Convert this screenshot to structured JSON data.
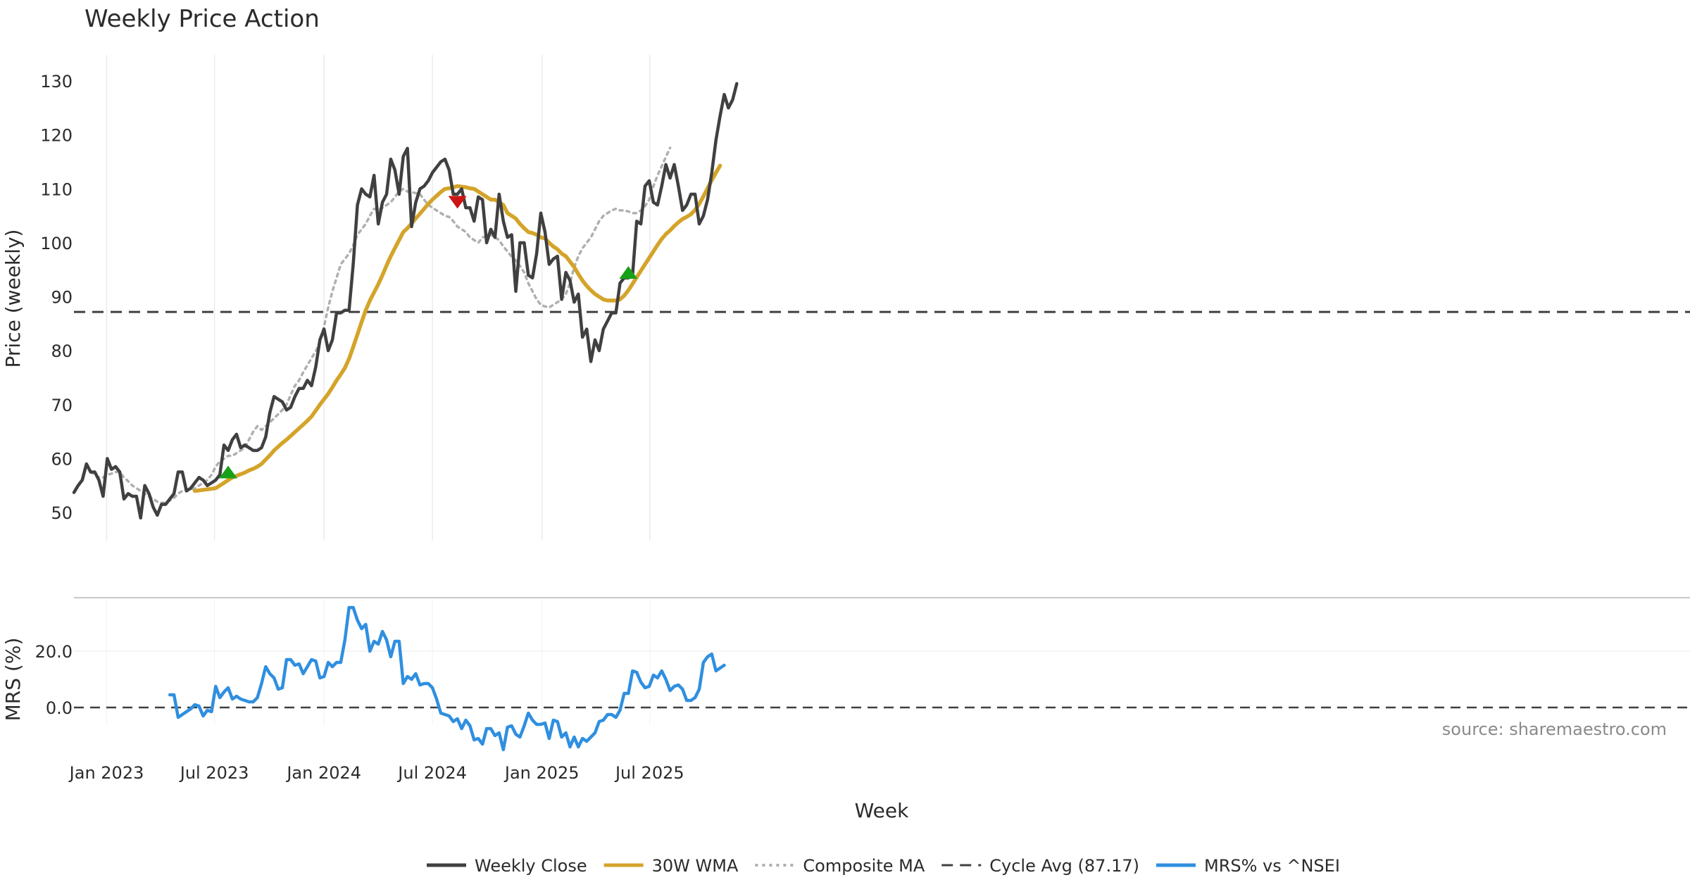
{
  "chart_data": {
    "type": "line",
    "title": "Weekly Price Action",
    "source_note": "source: sharemaestro.com",
    "xlabel": "Week",
    "x_start_date": "2022-11-07",
    "x_interval": "weekly",
    "x_ticks": [
      {
        "date": "2023-01-01",
        "label": "Jan 2023"
      },
      {
        "date": "2023-07-01",
        "label": "Jul 2023"
      },
      {
        "date": "2024-01-01",
        "label": "Jan 2024"
      },
      {
        "date": "2024-07-01",
        "label": "Jul 2024"
      },
      {
        "date": "2025-01-01",
        "label": "Jan 2025"
      },
      {
        "date": "2025-07-01",
        "label": "Jul 2025"
      }
    ],
    "grid": true,
    "legend_position": "bottom-center",
    "price_panel": {
      "ylabel": "Price (weekly)",
      "ylim": [
        44,
        135
      ],
      "yticks": [
        50,
        60,
        70,
        80,
        90,
        100,
        110,
        120,
        130
      ],
      "cycle_avg": 87.17,
      "series": [
        {
          "name": "Weekly Close",
          "color": "#404040",
          "style": "solid",
          "values": [
            53.7,
            55,
            56,
            59,
            57.5,
            57.5,
            56,
            53,
            60,
            58,
            58.5,
            57.5,
            52.5,
            53.5,
            53,
            53,
            49,
            55,
            53.5,
            51,
            49.5,
            51.5,
            51.5,
            52.5,
            53.5,
            57.5,
            57.5,
            54,
            54.5,
            55.5,
            56.5,
            56,
            55,
            55.5,
            56,
            57,
            62.5,
            61.5,
            63.5,
            64.5,
            62,
            62.5,
            62,
            61.5,
            61.5,
            62,
            64,
            68.5,
            71.5,
            71,
            70.5,
            69,
            69.5,
            71.5,
            73,
            73,
            74.5,
            73.5,
            77,
            82,
            84,
            80,
            82,
            87,
            87,
            87.5,
            87.5,
            96,
            107,
            110,
            109,
            108.5,
            112.5,
            103.5,
            107.5,
            109,
            115.5,
            113.5,
            109,
            116,
            117.5,
            103,
            107.5,
            110,
            110.5,
            111.5,
            113,
            114,
            115,
            115.5,
            113.5,
            109,
            109,
            110,
            106.5,
            106.5,
            104,
            108.5,
            108,
            100,
            102.5,
            101,
            109,
            104,
            101,
            101.5,
            91,
            100,
            100,
            94,
            93.5,
            98,
            105.5,
            102,
            96,
            97,
            97.5,
            89.5,
            94.5,
            93,
            89,
            90.5,
            82.5,
            84,
            78,
            82,
            80,
            84,
            85.5,
            87,
            87,
            92.5,
            93.5,
            93.5,
            94,
            104,
            103.5,
            110.5,
            111.5,
            107.5,
            107,
            110.5,
            114.5,
            112,
            114.5,
            110.5,
            106,
            107,
            109,
            109,
            103.5,
            105,
            108,
            113,
            119,
            123.5,
            127.5,
            125,
            126.5,
            129.5
          ]
        },
        {
          "name": "30W WMA",
          "color": "#D4A42A",
          "style": "solid",
          "start_index": 29,
          "values": [
            54,
            54.1,
            54.2,
            54.3,
            54.4,
            54.5,
            55,
            55.5,
            56,
            56.5,
            56.8,
            57.1,
            57.4,
            57.8,
            58.1,
            58.5,
            59,
            59.8,
            60.6,
            61.5,
            62.2,
            62.9,
            63.5,
            64.2,
            64.9,
            65.6,
            66.3,
            67,
            67.8,
            68.9,
            70,
            71,
            72,
            73.2,
            74.5,
            75.6,
            76.8,
            78.5,
            80.7,
            83,
            85.3,
            87.5,
            89.3,
            90.8,
            92.3,
            94,
            95.8,
            97.5,
            99,
            100.5,
            102,
            102.7,
            103.6,
            104.5,
            105.4,
            106.3,
            107.2,
            108,
            108.7,
            109.4,
            110,
            110.1,
            110.3,
            110.5,
            110.4,
            110.3,
            110.1,
            110,
            109.5,
            109,
            108.5,
            108,
            108,
            107.5,
            107,
            105.5,
            105,
            104.5,
            103.5,
            102.7,
            102,
            101.8,
            101.5,
            101,
            100.8,
            100,
            99.3,
            98.8,
            98,
            97.5,
            96.5,
            95.5,
            94.2,
            93,
            92,
            91.2,
            90.5,
            90,
            89.5,
            89.3,
            89.3,
            89.3,
            89.5,
            90.2,
            91.2,
            92.4,
            93.6,
            94.8,
            96,
            97.2,
            98.4,
            99.6,
            100.7,
            101.6,
            102.3,
            103.1,
            103.8,
            104.4,
            104.8,
            105.3,
            106.1,
            107.2,
            108.6,
            110.1,
            111.6,
            113,
            114.3
          ]
        },
        {
          "name": "Composite MA",
          "color": "#b0b0b0",
          "style": "dotted",
          "start_index": 4,
          "values": [
            57.5,
            57,
            56.5,
            56.5,
            57,
            57.2,
            57.5,
            57.5,
            56.5,
            55.8,
            55,
            54.5,
            54,
            53.5,
            53,
            52.5,
            52,
            51.8,
            51.8,
            52.2,
            52.7,
            53.5,
            54,
            54.2,
            54.2,
            54.5,
            55,
            55.5,
            56,
            57,
            58.5,
            59.5,
            60,
            60.5,
            60.5,
            61,
            61.5,
            62,
            63.5,
            65,
            66,
            65.3,
            66,
            66.7,
            67.5,
            68.2,
            69,
            70,
            71.8,
            73.5,
            74.5,
            76,
            77.3,
            78.6,
            79.9,
            81.5,
            84.5,
            88,
            91,
            93.5,
            96,
            97,
            98,
            99.5,
            101.5,
            102.5,
            103.5,
            105,
            106.3,
            106,
            106.5,
            107,
            107.5,
            108.5,
            109.5,
            110,
            109.5,
            109.4,
            109.2,
            109,
            108,
            107,
            106.5,
            106,
            105.5,
            105,
            104.8,
            104,
            103,
            102.5,
            102,
            101,
            100.5,
            100,
            101,
            101.2,
            101.5,
            101,
            100.5,
            99.3,
            98.4,
            97.4,
            96.7,
            95.7,
            94.5,
            92.5,
            91,
            89.5,
            88.5,
            88.2,
            88,
            88.5,
            89,
            89.5,
            90.5,
            92.5,
            95.5,
            97.5,
            99,
            100,
            101,
            102.5,
            104,
            105,
            105.5,
            106,
            106.3,
            106,
            106,
            105.8,
            105.5,
            105.5,
            106,
            106.8,
            108,
            110.5,
            112.5,
            114.2,
            115.9,
            117.6
          ]
        }
      ],
      "signals": [
        {
          "type": "buy",
          "index": 37,
          "value": 57.5,
          "color": "#19A019"
        },
        {
          "type": "sell",
          "index": 92,
          "value": 107.5,
          "color": "#CC1515"
        },
        {
          "type": "buy",
          "index": 133,
          "value": 94.5,
          "color": "#19A019"
        }
      ]
    },
    "mrs_panel": {
      "ylabel": "MRS (%)",
      "ylim": [
        -16,
        40
      ],
      "yticks": [
        0,
        20
      ],
      "ytick_labels": [
        "0.0",
        "20.0"
      ],
      "series": [
        {
          "name": "MRS% vs ^NSEI",
          "color": "#2F8FE0",
          "style": "solid",
          "start_index": 23,
          "values": [
            4.5,
            4.5,
            -3.5,
            -2.5,
            -1.5,
            -0.5,
            1,
            0.5,
            -3,
            -1,
            -1.5,
            7.5,
            3.5,
            5.5,
            7,
            3,
            4,
            3,
            2.5,
            2,
            2,
            3.5,
            8.5,
            14.5,
            12,
            10.5,
            6.5,
            7,
            17,
            17,
            15,
            15.5,
            12,
            14.5,
            17,
            16.5,
            10.5,
            11,
            16,
            14.5,
            16,
            16,
            24,
            35.5,
            35.5,
            31,
            28,
            29.5,
            20,
            23.5,
            22.5,
            27,
            24,
            18,
            23.5,
            23.5,
            8.5,
            11,
            10,
            12,
            8,
            8.5,
            8.5,
            7,
            3,
            -2,
            -2.5,
            -3,
            -5,
            -4,
            -7.5,
            -4.5,
            -6.5,
            -11.5,
            -11,
            -13,
            -7.5,
            -7.5,
            -10,
            -9,
            -15,
            -7,
            -6.5,
            -9.5,
            -10.5,
            -6.5,
            -2,
            -4.5,
            -6,
            -6,
            -5.5,
            -11,
            -4.5,
            -5,
            -10.5,
            -9,
            -14,
            -10.5,
            -14,
            -11,
            -12,
            -10.5,
            -9,
            -5,
            -4.5,
            -2.5,
            -2.5,
            -3.5,
            -1,
            5,
            5,
            13,
            12.5,
            9,
            7,
            7.5,
            11.5,
            10.5,
            13,
            10,
            6,
            7.5,
            8,
            6.5,
            2.5,
            2.5,
            3.5,
            6.5,
            16,
            18,
            19,
            13,
            14,
            15
          ]
        }
      ]
    },
    "legend": [
      {
        "label": "Weekly Close",
        "color": "#404040",
        "style": "solid"
      },
      {
        "label": "30W WMA",
        "color": "#D4A42A",
        "style": "solid"
      },
      {
        "label": "Composite MA",
        "color": "#b0b0b0",
        "style": "dotted"
      },
      {
        "label": "Cycle Avg (87.17)",
        "color": "#404040",
        "style": "dashed"
      },
      {
        "label": "MRS% vs ^NSEI",
        "color": "#2F8FE0",
        "style": "solid"
      }
    ]
  }
}
